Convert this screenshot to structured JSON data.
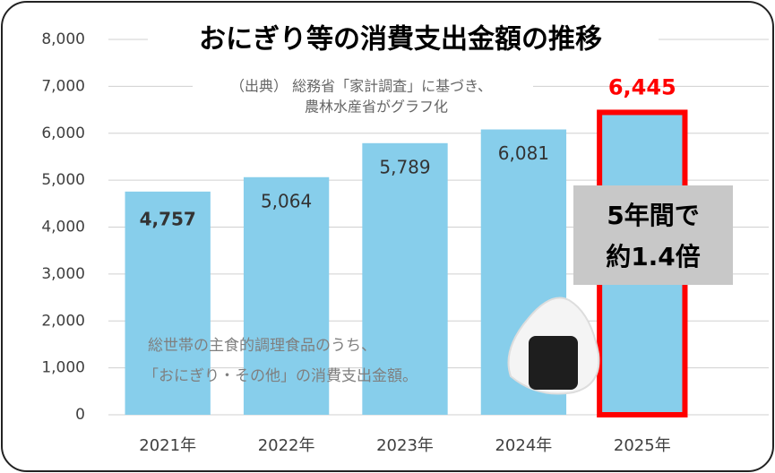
{
  "chart_data": {
    "type": "bar",
    "title": "おにぎり等の消費支出金額の推移",
    "source": [
      "（出典） 総務省「家計調査」に基づき、",
      "農林水産省がグラフ化"
    ],
    "note": [
      "総世帯の主食的調理食品のうち、",
      "「おにぎり・その他」の消費支出金額。"
    ],
    "callout": [
      "5年間で",
      "約1.4倍"
    ],
    "categories": [
      "2021年",
      "2022年",
      "2023年",
      "2024年",
      "2025年"
    ],
    "values": [
      4757,
      5064,
      5789,
      6081,
      6445
    ],
    "value_labels": [
      "4,757",
      "5,064",
      "5,789",
      "6,081",
      "6,445"
    ],
    "color": "#87ceeb",
    "highlight_color": "#ff0000",
    "ylim": [
      0,
      8000
    ],
    "yticks": [
      0,
      {
        "value": 1000,
        "label": "1,000"
      },
      {
        "value": 2000,
        "label": "2,000"
      },
      {
        "value": 3000,
        "label": "3,000"
      },
      {
        "value": 4000,
        "label": "4,000"
      },
      {
        "value": 5000,
        "label": "5,000"
      },
      {
        "value": 6000,
        "label": "6,000"
      },
      {
        "value": 7000,
        "label": "7,000"
      },
      {
        "value": 8000,
        "label": "8,000"
      }
    ],
    "grid": true
  }
}
